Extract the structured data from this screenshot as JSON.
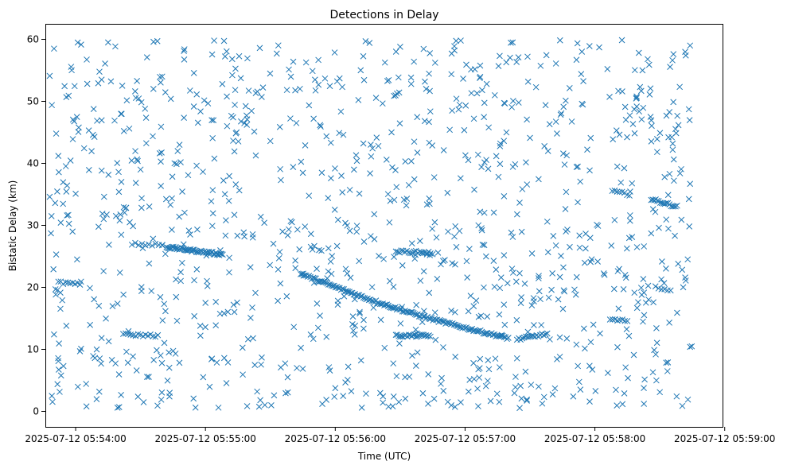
{
  "chart_data": {
    "type": "scatter",
    "title": "Detections in Delay",
    "xlabel": "Time (UTC)",
    "ylabel": "Bistatic Delay (km)",
    "marker": "x",
    "color": "#1f77b4",
    "grid": false,
    "legend": "none",
    "xlim": [
      "2025-07-12 05:53:46",
      "2025-07-12 05:58:59"
    ],
    "ylim": [
      -2.5,
      62.5
    ],
    "x_ticks": [
      "2025-07-12 05:54:00",
      "2025-07-12 05:55:00",
      "2025-07-12 05:56:00",
      "2025-07-12 05:57:00",
      "2025-07-12 05:58:00",
      "2025-07-12 05:59:00"
    ],
    "y_ticks": [
      "0",
      "10",
      "20",
      "30",
      "40",
      "50",
      "60"
    ],
    "track_detections": [
      {
        "start": "2025-07-12 05:54:42",
        "end": "2025-07-12 05:55:08",
        "delay_start": 26.5,
        "delay_end": 25.3,
        "count": 50
      },
      {
        "start": "2025-07-12 05:55:44",
        "end": "2025-07-12 05:57:20",
        "delay_start": 22.2,
        "delay_end": 11.8,
        "count": 150
      },
      {
        "start": "2025-07-12 05:57:24",
        "end": "2025-07-12 05:57:38",
        "delay_start": 11.6,
        "delay_end": 12.5,
        "count": 18
      },
      {
        "start": "2025-07-12 05:58:08",
        "end": "2025-07-12 05:58:16",
        "delay_start": 35.5,
        "delay_end": 35.0,
        "count": 8
      },
      {
        "start": "2025-07-12 05:58:26",
        "end": "2025-07-12 05:58:38",
        "delay_start": 34.2,
        "delay_end": 33.0,
        "count": 18
      },
      {
        "start": "2025-07-12 05:56:28",
        "end": "2025-07-12 05:56:44",
        "delay_start": 25.8,
        "delay_end": 25.6,
        "count": 20
      },
      {
        "start": "2025-07-12 05:56:28",
        "end": "2025-07-12 05:56:44",
        "delay_start": 12.2,
        "delay_end": 12.2,
        "count": 25
      },
      {
        "start": "2025-07-12 05:54:22",
        "end": "2025-07-12 05:54:38",
        "delay_start": 12.4,
        "delay_end": 12.2,
        "count": 15
      },
      {
        "start": "2025-07-12 05:53:52",
        "end": "2025-07-12 05:54:02",
        "delay_start": 20.8,
        "delay_end": 20.5,
        "count": 10
      },
      {
        "start": "2025-07-12 05:54:26",
        "end": "2025-07-12 05:54:40",
        "delay_start": 27.0,
        "delay_end": 26.8,
        "count": 10
      },
      {
        "start": "2025-07-12 05:58:07",
        "end": "2025-07-12 05:58:15",
        "delay_start": 14.8,
        "delay_end": 14.6,
        "count": 8
      },
      {
        "start": "2025-07-12 05:58:28",
        "end": "2025-07-12 05:58:35",
        "delay_start": 20.0,
        "delay_end": 19.5,
        "count": 6
      }
    ],
    "scattered_detections": [
      {
        "x": "2025-07-12 05:53:48",
        "y": 54.1
      },
      {
        "x": "2025-07-12 05:53:49",
        "y": 49.4
      },
      {
        "x": "2025-07-12 05:53:50",
        "y": 58.5
      },
      {
        "x": "2025-07-12 05:53:51",
        "y": 44.8
      },
      {
        "x": "2025-07-12 05:53:52",
        "y": 41.2
      },
      {
        "x": "2025-07-12 05:53:48",
        "y": 34.6
      },
      {
        "x": "2025-07-12 05:53:51",
        "y": 25.3
      },
      {
        "x": "2025-07-12 05:53:50",
        "y": 12.4
      },
      {
        "x": "2025-07-12 05:53:52",
        "y": 8.1
      },
      {
        "x": "2025-07-12 05:53:49",
        "y": 2.5
      },
      {
        "x": "2025-07-12 05:53:56",
        "y": 31.6
      },
      {
        "x": "2025-07-12 05:54:00",
        "y": 35.1
      },
      {
        "x": "2025-07-12 05:54:02",
        "y": 9.7
      },
      {
        "x": "2025-07-12 05:54:05",
        "y": 0.8
      },
      {
        "x": "2025-07-12 05:54:08",
        "y": 44.6
      },
      {
        "x": "2025-07-12 05:54:12",
        "y": 53.5
      },
      {
        "x": "2025-07-12 05:54:15",
        "y": 59.5
      },
      {
        "x": "2025-07-12 05:54:18",
        "y": 46.9
      },
      {
        "x": "2025-07-12 05:54:20",
        "y": 35.4
      },
      {
        "x": "2025-07-12 05:54:25",
        "y": 30.5
      },
      {
        "x": "2025-07-12 05:54:30",
        "y": 39.0
      },
      {
        "x": "2025-07-12 05:54:33",
        "y": 57.1
      },
      {
        "x": "2025-07-12 05:54:36",
        "y": 59.6
      },
      {
        "x": "2025-07-12 05:54:40",
        "y": 54.0
      },
      {
        "x": "2025-07-12 05:54:44",
        "y": 50.4
      },
      {
        "x": "2025-07-12 05:54:48",
        "y": 43.0
      },
      {
        "x": "2025-07-12 05:54:52",
        "y": 38.1
      },
      {
        "x": "2025-07-12 05:54:56",
        "y": 22.9
      },
      {
        "x": "2025-07-12 05:55:00",
        "y": 17.5
      },
      {
        "x": "2025-07-12 05:55:03",
        "y": 8.5
      },
      {
        "x": "2025-07-12 05:55:04",
        "y": 59.8
      },
      {
        "x": "2025-07-12 05:55:06",
        "y": 0.6
      },
      {
        "x": "2025-07-12 05:55:10",
        "y": 46.0
      },
      {
        "x": "2025-07-12 05:55:14",
        "y": 36.6
      },
      {
        "x": "2025-07-12 05:55:18",
        "y": 28.2
      },
      {
        "x": "2025-07-12 05:55:22",
        "y": 11.8
      },
      {
        "x": "2025-07-12 05:55:26",
        "y": 50.7
      },
      {
        "x": "2025-07-12 05:55:30",
        "y": 43.6
      },
      {
        "x": "2025-07-12 05:55:34",
        "y": 24.7
      },
      {
        "x": "2025-07-12 05:55:38",
        "y": 5.5
      },
      {
        "x": "2025-07-12 05:55:42",
        "y": 46.5
      },
      {
        "x": "2025-07-12 05:55:46",
        "y": 29.8
      },
      {
        "x": "2025-07-12 05:55:50",
        "y": 47.2
      },
      {
        "x": "2025-07-12 05:55:54",
        "y": 1.2
      },
      {
        "x": "2025-07-12 05:55:58",
        "y": 37.6
      },
      {
        "x": "2025-07-12 05:56:02",
        "y": 53.7
      },
      {
        "x": "2025-07-12 05:56:06",
        "y": 7.2
      },
      {
        "x": "2025-07-12 05:56:10",
        "y": 40.4
      },
      {
        "x": "2025-07-12 05:56:14",
        "y": 59.7
      },
      {
        "x": "2025-07-12 05:56:18",
        "y": 31.8
      },
      {
        "x": "2025-07-12 05:56:22",
        "y": 1.4
      },
      {
        "x": "2025-07-12 05:56:26",
        "y": 45.0
      },
      {
        "x": "2025-07-12 05:56:30",
        "y": 58.8
      },
      {
        "x": "2025-07-12 05:56:34",
        "y": 36.5
      },
      {
        "x": "2025-07-12 05:56:38",
        "y": 9.5
      },
      {
        "x": "2025-07-12 05:56:42",
        "y": 52.0
      },
      {
        "x": "2025-07-12 05:56:46",
        "y": 30.5
      },
      {
        "x": "2025-07-12 05:56:50",
        "y": 3.3
      },
      {
        "x": "2025-07-12 05:56:54",
        "y": 48.5
      },
      {
        "x": "2025-07-12 05:56:58",
        "y": 59.8
      },
      {
        "x": "2025-07-12 05:57:02",
        "y": 26.2
      },
      {
        "x": "2025-07-12 05:57:06",
        "y": 41.4
      },
      {
        "x": "2025-07-12 05:57:10",
        "y": 52.8
      },
      {
        "x": "2025-07-12 05:57:14",
        "y": 8.5
      },
      {
        "x": "2025-07-12 05:57:18",
        "y": 34.7
      },
      {
        "x": "2025-07-12 05:57:22",
        "y": 59.5
      },
      {
        "x": "2025-07-12 05:57:26",
        "y": 18.4
      },
      {
        "x": "2025-07-12 05:57:30",
        "y": 44.1
      },
      {
        "x": "2025-07-12 05:57:34",
        "y": 4.0
      },
      {
        "x": "2025-07-12 05:57:38",
        "y": 30.6
      },
      {
        "x": "2025-07-12 05:57:42",
        "y": 56.1
      },
      {
        "x": "2025-07-12 05:57:46",
        "y": 39.8
      },
      {
        "x": "2025-07-12 05:57:50",
        "y": 2.4
      },
      {
        "x": "2025-07-12 05:57:54",
        "y": 49.6
      },
      {
        "x": "2025-07-12 05:57:58",
        "y": 24.1
      },
      {
        "x": "2025-07-12 05:58:02",
        "y": 58.7
      },
      {
        "x": "2025-07-12 05:58:06",
        "y": 6.2
      },
      {
        "x": "2025-07-12 05:58:10",
        "y": 45.3
      },
      {
        "x": "2025-07-12 05:58:14",
        "y": 22.0
      },
      {
        "x": "2025-07-12 05:58:18",
        "y": 9.1
      },
      {
        "x": "2025-07-12 05:58:22",
        "y": 55.0
      },
      {
        "x": "2025-07-12 05:58:26",
        "y": 28.7
      },
      {
        "x": "2025-07-12 05:58:30",
        "y": 3.1
      },
      {
        "x": "2025-07-12 05:58:34",
        "y": 44.2
      },
      {
        "x": "2025-07-12 05:58:38",
        "y": 15.9
      },
      {
        "x": "2025-07-12 05:58:42",
        "y": 57.4
      },
      {
        "x": "2025-07-12 05:58:44",
        "y": 36.7
      },
      {
        "x": "2025-07-12 05:58:44",
        "y": 10.4
      },
      {
        "x": "2025-07-12 05:58:43",
        "y": 1.9
      },
      {
        "x": "2025-07-12 05:58:44",
        "y": 59.0
      },
      {
        "x": "2025-07-12 05:58:42",
        "y": 21.1
      },
      {
        "x": "2025-07-12 05:58:40",
        "y": 30.9
      }
    ],
    "random_background_clutter": {
      "x_range": [
        "2025-07-12 05:53:48",
        "2025-07-12 05:58:45"
      ],
      "y_range": [
        0.5,
        60
      ],
      "count": 950
    }
  }
}
